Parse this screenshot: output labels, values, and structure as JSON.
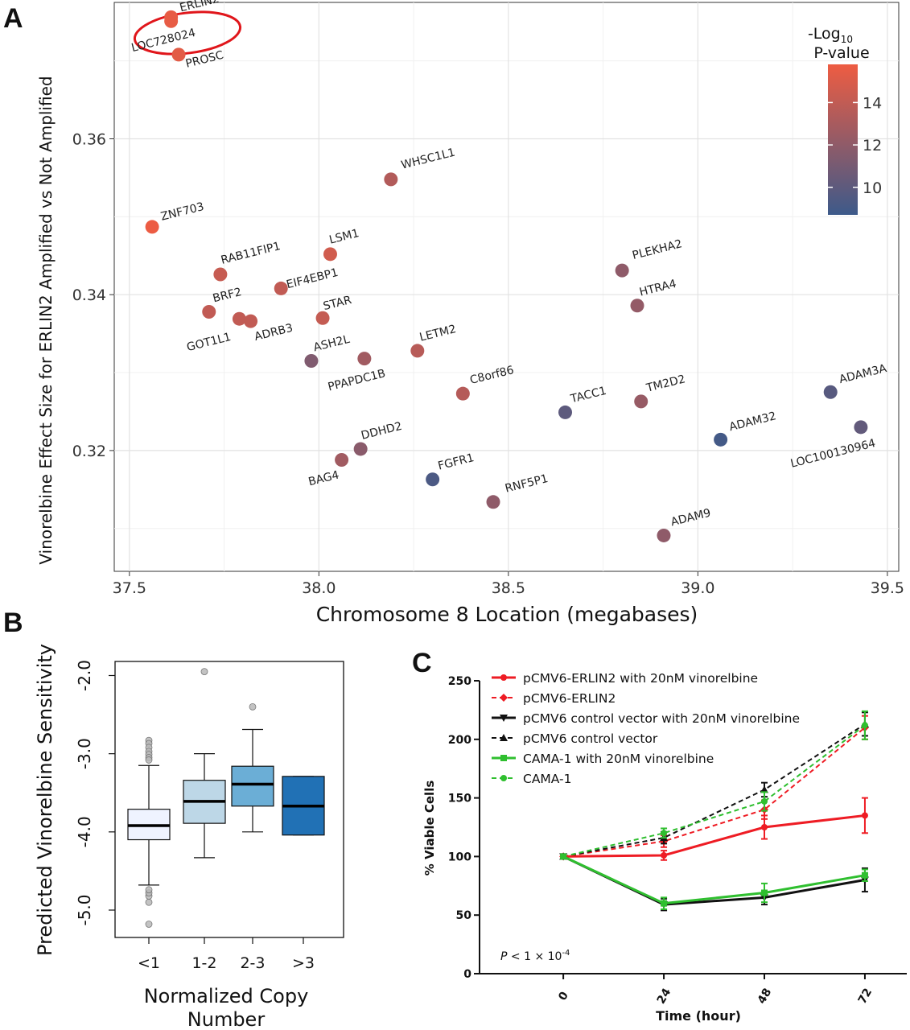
{
  "panels": {
    "a": "A",
    "b": "B",
    "c": "C"
  },
  "colors": {
    "scale_low": "#3d5a8a",
    "scale_high": "#ee5c42",
    "highlight_circle": "#e0161b",
    "panel_c_red": "#ee1c24",
    "panel_c_black": "#111111",
    "panel_c_green": "#2fbf2f"
  },
  "chart_data": [
    {
      "id": "A",
      "type": "scatter",
      "title": "",
      "xlabel": "Chromosome 8 Location (megabases)",
      "ylabel": "Vinorelbine Effect Size for ERLIN2 Amplified vs Not Amplified",
      "xlim": [
        37.46,
        39.53
      ],
      "ylim": [
        0.3045,
        0.3775
      ],
      "xticks": [
        37.5,
        38.0,
        38.5,
        39.0,
        39.5
      ],
      "xtick_labels": [
        "37.5",
        "38.0",
        "38.5",
        "39.0",
        "39.5"
      ],
      "yticks": [
        0.32,
        0.34,
        0.36
      ],
      "ytick_labels": [
        "0.32",
        "0.34",
        "0.36"
      ],
      "grid": true,
      "legend": {
        "title_line1": "-Log",
        "title_sub": "10",
        "title_line2": "P-value",
        "range": [
          8.7,
          15.8
        ],
        "ticks": [
          10,
          12,
          14
        ],
        "tick_labels": [
          "10",
          "12",
          "14"
        ],
        "placement": "top-right"
      },
      "highlight": "ERLIN2",
      "points": [
        {
          "label": "ERLIN2",
          "x": 37.61,
          "y": 0.3756,
          "p": 15.5
        },
        {
          "label": "LOC728024",
          "x": 37.61,
          "y": 0.3751,
          "p": 15.5
        },
        {
          "label": "PROSC",
          "x": 37.63,
          "y": 0.3708,
          "p": 15.3
        },
        {
          "label": "ZNF703",
          "x": 37.56,
          "y": 0.3487,
          "p": 15.7
        },
        {
          "label": "WHSC1L1",
          "x": 38.19,
          "y": 0.3548,
          "p": 13.4
        },
        {
          "label": "RAB11FIP1",
          "x": 37.74,
          "y": 0.3426,
          "p": 14.2
        },
        {
          "label": "LSM1",
          "x": 38.03,
          "y": 0.3452,
          "p": 14.6
        },
        {
          "label": "EIF4EBP1",
          "x": 37.9,
          "y": 0.3408,
          "p": 14.0
        },
        {
          "label": "BRF2",
          "x": 37.71,
          "y": 0.3378,
          "p": 14.0
        },
        {
          "label": "GOT1L1",
          "x": 37.79,
          "y": 0.3369,
          "p": 14.0
        },
        {
          "label": "ADRB3",
          "x": 37.82,
          "y": 0.3366,
          "p": 14.0
        },
        {
          "label": "STAR",
          "x": 38.01,
          "y": 0.337,
          "p": 14.1
        },
        {
          "label": "ASH2L",
          "x": 37.98,
          "y": 0.3315,
          "p": 11.4
        },
        {
          "label": "PPAPDC1B",
          "x": 38.12,
          "y": 0.3318,
          "p": 12.7
        },
        {
          "label": "LETM2",
          "x": 38.26,
          "y": 0.3328,
          "p": 13.6
        },
        {
          "label": "C8orf86",
          "x": 38.38,
          "y": 0.3273,
          "p": 13.5
        },
        {
          "label": "TACC1",
          "x": 38.65,
          "y": 0.3249,
          "p": 10.0
        },
        {
          "label": "PLEKHA2",
          "x": 38.8,
          "y": 0.3431,
          "p": 12.0
        },
        {
          "label": "HTRA4",
          "x": 38.84,
          "y": 0.3386,
          "p": 12.2
        },
        {
          "label": "TM2D2",
          "x": 38.85,
          "y": 0.3263,
          "p": 12.3
        },
        {
          "label": "ADAM32",
          "x": 39.06,
          "y": 0.3214,
          "p": 9.0
        },
        {
          "label": "ADAM3A",
          "x": 39.35,
          "y": 0.3275,
          "p": 9.8
        },
        {
          "label": "LOC100130964",
          "x": 39.43,
          "y": 0.323,
          "p": 10.2
        },
        {
          "label": "DDHD2",
          "x": 38.11,
          "y": 0.3202,
          "p": 11.8
        },
        {
          "label": "BAG4",
          "x": 38.06,
          "y": 0.3188,
          "p": 12.7
        },
        {
          "label": "FGFR1",
          "x": 38.3,
          "y": 0.3163,
          "p": 9.3
        },
        {
          "label": "RNF5P1",
          "x": 38.46,
          "y": 0.3134,
          "p": 12.0
        },
        {
          "label": "ADAM9",
          "x": 38.91,
          "y": 0.3091,
          "p": 12.0
        }
      ]
    },
    {
      "id": "B",
      "type": "box",
      "title": "",
      "xlabel_line1": "Normalized Copy",
      "xlabel_line2": "Number",
      "ylabel": "Predicted Vinorelbine Sensitivity",
      "ylim": [
        -5.35,
        -1.82
      ],
      "yticks": [
        -5.0,
        -4.0,
        -3.0,
        -2.0
      ],
      "ytick_labels": [
        "-5.0",
        "-4.0",
        "-3.0",
        "-2.0"
      ],
      "categories": [
        "<1",
        "1-2",
        "2-3",
        ">3"
      ],
      "fill_colors": [
        "#eff3ff",
        "#bdd7e7",
        "#6baed6",
        "#2171b5"
      ],
      "boxes": [
        {
          "q1": -4.1,
          "median": -3.92,
          "q3": -3.71,
          "whisker_low": -4.68,
          "whisker_high": -3.15,
          "outliers": [
            -5.18,
            -4.9,
            -4.82,
            -4.78,
            -4.74,
            -2.83,
            -2.87,
            -2.92,
            -2.97,
            -3.01,
            -3.05,
            -3.08
          ]
        },
        {
          "q1": -3.89,
          "median": -3.61,
          "q3": -3.34,
          "whisker_low": -4.33,
          "whisker_high": -3.0,
          "outliers": [
            -1.95
          ]
        },
        {
          "q1": -3.67,
          "median": -3.39,
          "q3": -3.16,
          "whisker_low": -4.0,
          "whisker_high": -2.69,
          "outliers": [
            -2.4
          ]
        },
        {
          "q1": -4.04,
          "median": -3.67,
          "q3": -3.29,
          "whisker_low": -4.04,
          "whisker_high": -3.29,
          "outliers": []
        }
      ]
    },
    {
      "id": "C",
      "type": "line",
      "title": "",
      "xlabel": "Time (hour)",
      "ylabel": "% Viable Cells",
      "x": [
        0,
        24,
        48,
        72
      ],
      "xtick_labels": [
        "0",
        "24",
        "48",
        "72"
      ],
      "xlim": [
        -20,
        82
      ],
      "ylim": [
        0,
        250
      ],
      "yticks": [
        0,
        50,
        100,
        150,
        200,
        250
      ],
      "ytick_labels": [
        "0",
        "50",
        "100",
        "150",
        "200",
        "250"
      ],
      "annotation": {
        "prefix": "P",
        "mid": " < 1 × 10",
        "sup": "-4"
      },
      "legend_placement": "top-left",
      "series": [
        {
          "name": "pCMV6-ERLIN2 with 20nM vinorelbine",
          "values": [
            100,
            101,
            125,
            135
          ],
          "err": [
            0,
            4,
            10,
            15
          ],
          "color": "#ee1c24",
          "dashed": false,
          "marker": "circle"
        },
        {
          "name": "pCMV6-ERLIN2",
          "values": [
            100,
            113,
            140,
            210
          ],
          "err": [
            0,
            5,
            8,
            10
          ],
          "color": "#ee1c24",
          "dashed": true,
          "marker": "diamond"
        },
        {
          "name": "pCMV6 control vector with 20nM vinorelbine",
          "values": [
            100,
            59,
            65,
            80
          ],
          "err": [
            0,
            5,
            6,
            10
          ],
          "color": "#111111",
          "dashed": false,
          "marker": "down-triangle"
        },
        {
          "name": "pCMV6 control vector",
          "values": [
            100,
            116,
            157,
            213
          ],
          "err": [
            0,
            5,
            6,
            10
          ],
          "color": "#111111",
          "dashed": true,
          "marker": "up-triangle"
        },
        {
          "name": "CAMA-1 with 20nM vinorelbine",
          "values": [
            100,
            60,
            69,
            84
          ],
          "err": [
            0,
            5,
            8,
            5
          ],
          "color": "#2fbf2f",
          "dashed": false,
          "marker": "square"
        },
        {
          "name": "CAMA-1",
          "values": [
            100,
            120,
            147,
            212
          ],
          "err": [
            0,
            4,
            8,
            12
          ],
          "color": "#2fbf2f",
          "dashed": true,
          "marker": "circle"
        }
      ]
    }
  ]
}
